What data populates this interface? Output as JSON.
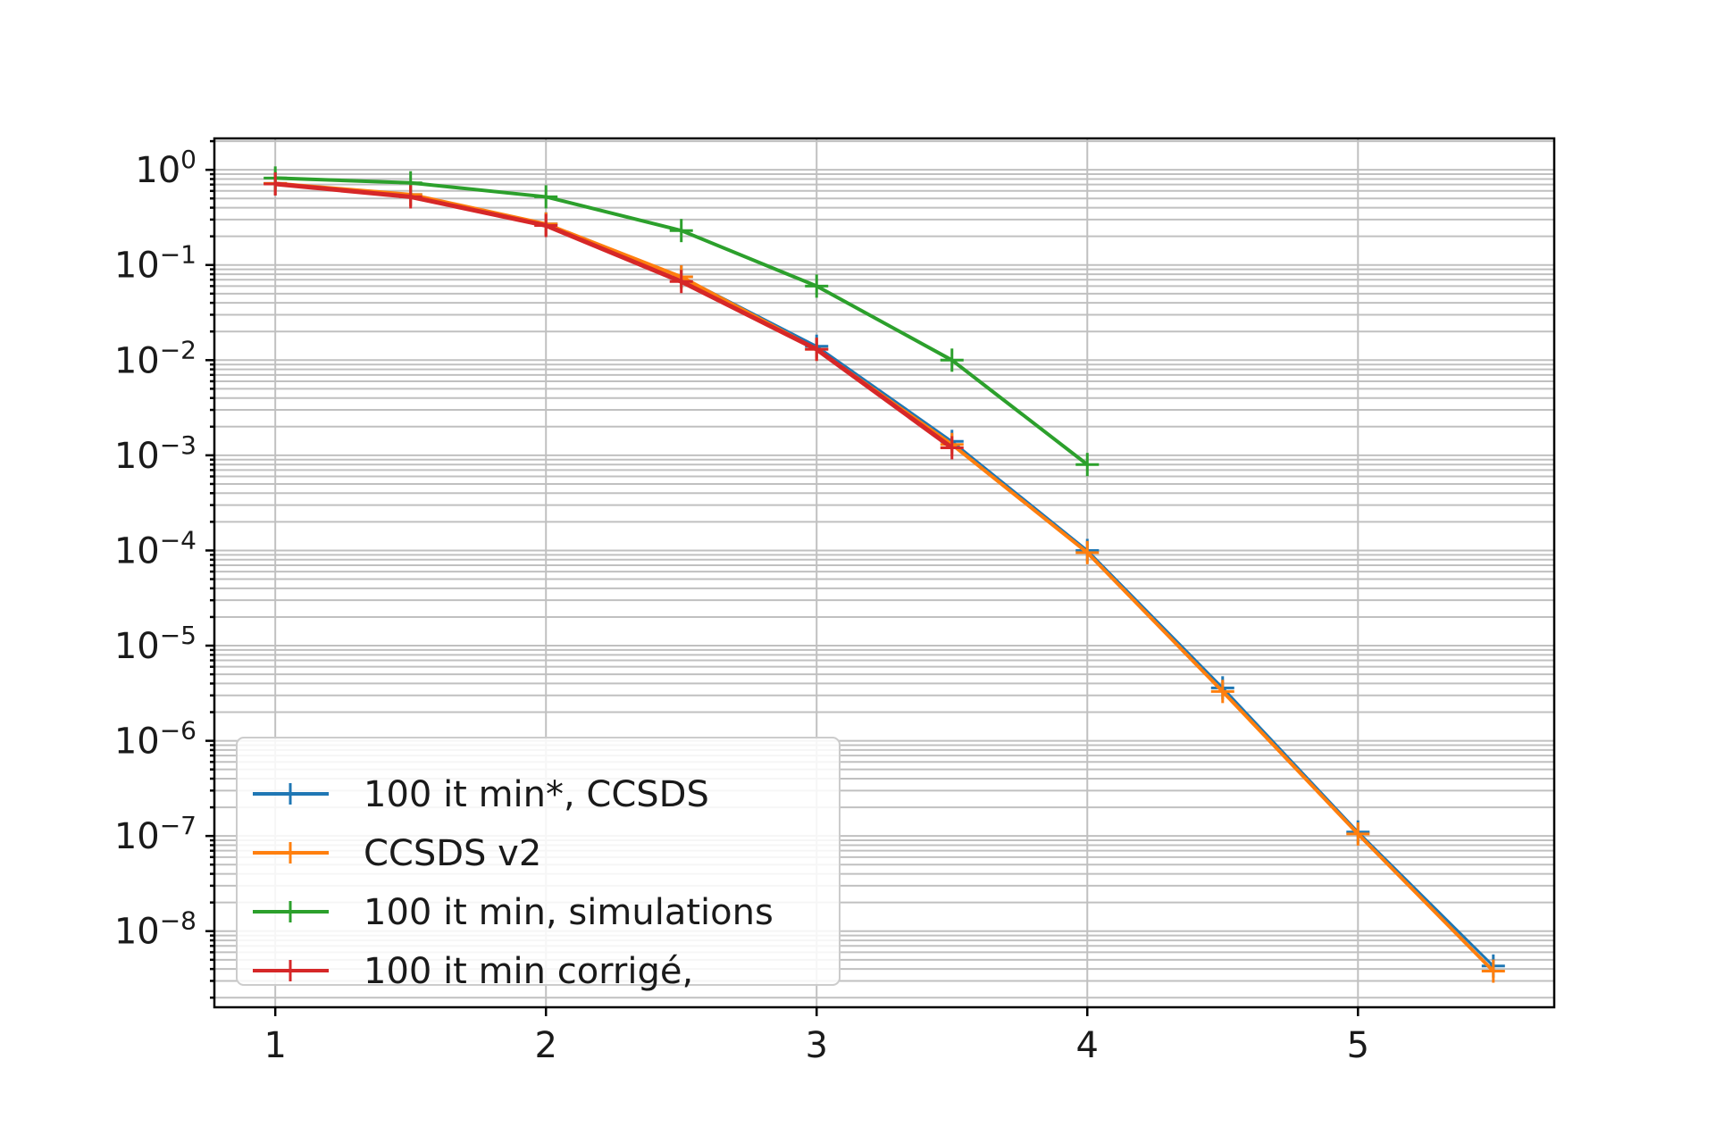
{
  "chart_data": {
    "type": "line",
    "title": "",
    "xlabel": "",
    "ylabel": "",
    "xlim": [
      0.775,
      5.725
    ],
    "ylim_log10": [
      -8.8,
      0.33
    ],
    "yscale": "log",
    "grid": true,
    "grid_minor_y": true,
    "legend_placement": "lower-left",
    "x_ticks": [
      {
        "value": 1,
        "label": "1"
      },
      {
        "value": 2,
        "label": "2"
      },
      {
        "value": 3,
        "label": "3"
      },
      {
        "value": 4,
        "label": "4"
      },
      {
        "value": 5,
        "label": "5"
      }
    ],
    "y_ticks": [
      {
        "exp": 0,
        "base": "10",
        "sup": "0"
      },
      {
        "exp": -1,
        "base": "10",
        "sup": "−1"
      },
      {
        "exp": -2,
        "base": "10",
        "sup": "−2"
      },
      {
        "exp": -3,
        "base": "10",
        "sup": "−3"
      },
      {
        "exp": -4,
        "base": "10",
        "sup": "−4"
      },
      {
        "exp": -5,
        "base": "10",
        "sup": "−5"
      },
      {
        "exp": -6,
        "base": "10",
        "sup": "−6"
      },
      {
        "exp": -7,
        "base": "10",
        "sup": "−7"
      },
      {
        "exp": -8,
        "base": "10",
        "sup": "−8"
      }
    ],
    "series": [
      {
        "name": "100 it min*, CCSDS",
        "color": "#1f77b4",
        "width": 3,
        "x": [
          1,
          1.5,
          2,
          2.5,
          3,
          3.5,
          4,
          4.5,
          5,
          5.5
        ],
        "y": [
          0.72,
          0.55,
          0.27,
          0.075,
          0.014,
          0.0014,
          0.0001,
          3.6e-06,
          1.1e-07,
          4.3e-09
        ]
      },
      {
        "name": "CCSDS v2",
        "color": "#ff7f0e",
        "width": 4,
        "x": [
          1,
          1.5,
          2,
          2.5,
          3,
          3.5,
          4,
          4.5,
          5,
          5.5
        ],
        "y": [
          0.72,
          0.55,
          0.27,
          0.075,
          0.013,
          0.0013,
          9.5e-05,
          3.3e-06,
          1.05e-07,
          3.8e-09
        ]
      },
      {
        "name": "100 it min, simulations",
        "color": "#2ca02c",
        "width": 4,
        "x": [
          1,
          1.5,
          2,
          2.5,
          3,
          3.5,
          4
        ],
        "y": [
          0.82,
          0.73,
          0.52,
          0.23,
          0.06,
          0.01,
          0.0008
        ]
      },
      {
        "name": "100 it min corrigé,",
        "color": "#d62728",
        "width": 5,
        "x": [
          1,
          1.5,
          2,
          2.5,
          3,
          3.5
        ],
        "y": [
          0.71,
          0.52,
          0.26,
          0.067,
          0.013,
          0.0012
        ]
      }
    ]
  }
}
